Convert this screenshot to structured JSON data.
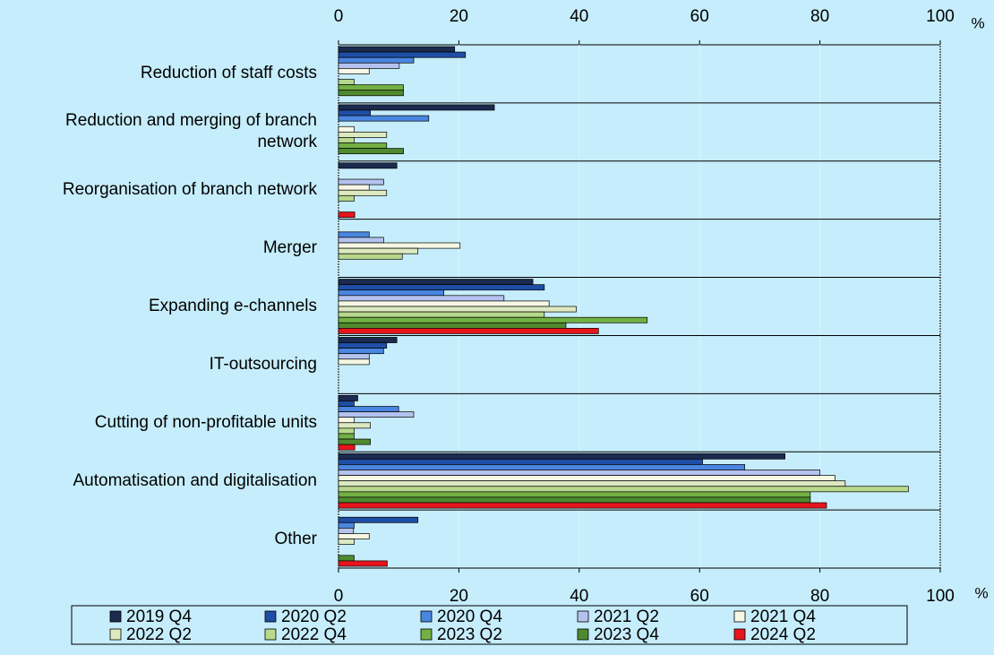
{
  "chart_data": {
    "type": "hbar",
    "x_unit": "%",
    "categories": [
      "Reduction of staff costs",
      "Reduction and merging of branch network",
      "Reorganisation of branch network",
      "Merger",
      "Expanding e-channels",
      "IT-outsourcing",
      "Cutting of non-profitable units",
      "Automatisation and digitalisation",
      "Other"
    ],
    "series": [
      {
        "name": "2019 Q4",
        "color": "#1b2a4e",
        "values": [
          19.3,
          25.9,
          9.7,
          0,
          32.3,
          9.7,
          3.2,
          74.2,
          0
        ]
      },
      {
        "name": "2020 Q2",
        "color": "#1f4ea6",
        "values": [
          21.1,
          5.3,
          0,
          0,
          34.2,
          8.0,
          2.6,
          60.5,
          13.2
        ]
      },
      {
        "name": "2020 Q4",
        "color": "#4a86e0",
        "values": [
          12.5,
          15.0,
          0,
          5.1,
          17.5,
          7.5,
          10.0,
          67.5,
          2.6
        ]
      },
      {
        "name": "2021 Q2",
        "color": "#b4c2ee",
        "values": [
          10.1,
          0,
          7.5,
          7.5,
          27.5,
          5.1,
          12.5,
          80.0,
          2.5
        ]
      },
      {
        "name": "2021 Q4",
        "color": "#f6f7e4",
        "values": [
          5.1,
          2.6,
          5.1,
          20.2,
          35.0,
          5.1,
          2.6,
          82.5,
          5.1
        ]
      },
      {
        "name": "2022 Q2",
        "color": "#dde9c0",
        "values": [
          0,
          8.0,
          8.0,
          13.2,
          39.5,
          0,
          5.3,
          84.2,
          2.6
        ]
      },
      {
        "name": "2022 Q4",
        "color": "#b8d88c",
        "values": [
          2.6,
          2.6,
          2.6,
          10.6,
          34.2,
          0,
          2.6,
          94.7,
          0
        ]
      },
      {
        "name": "2023 Q2",
        "color": "#72b043",
        "values": [
          10.8,
          8.0,
          0,
          0,
          51.3,
          0,
          2.6,
          78.4,
          0
        ]
      },
      {
        "name": "2023 Q4",
        "color": "#4f8a2e",
        "values": [
          10.8,
          10.8,
          0,
          0,
          37.8,
          0,
          5.3,
          78.4,
          2.6
        ]
      },
      {
        "name": "2024 Q2",
        "color": "#e8141c",
        "values": [
          0,
          0,
          2.7,
          0,
          43.2,
          0,
          2.7,
          81.1,
          8.1
        ]
      }
    ],
    "xlim": [
      0,
      100
    ],
    "xticks": [
      0,
      20,
      40,
      60,
      80,
      100
    ],
    "grid": true
  }
}
